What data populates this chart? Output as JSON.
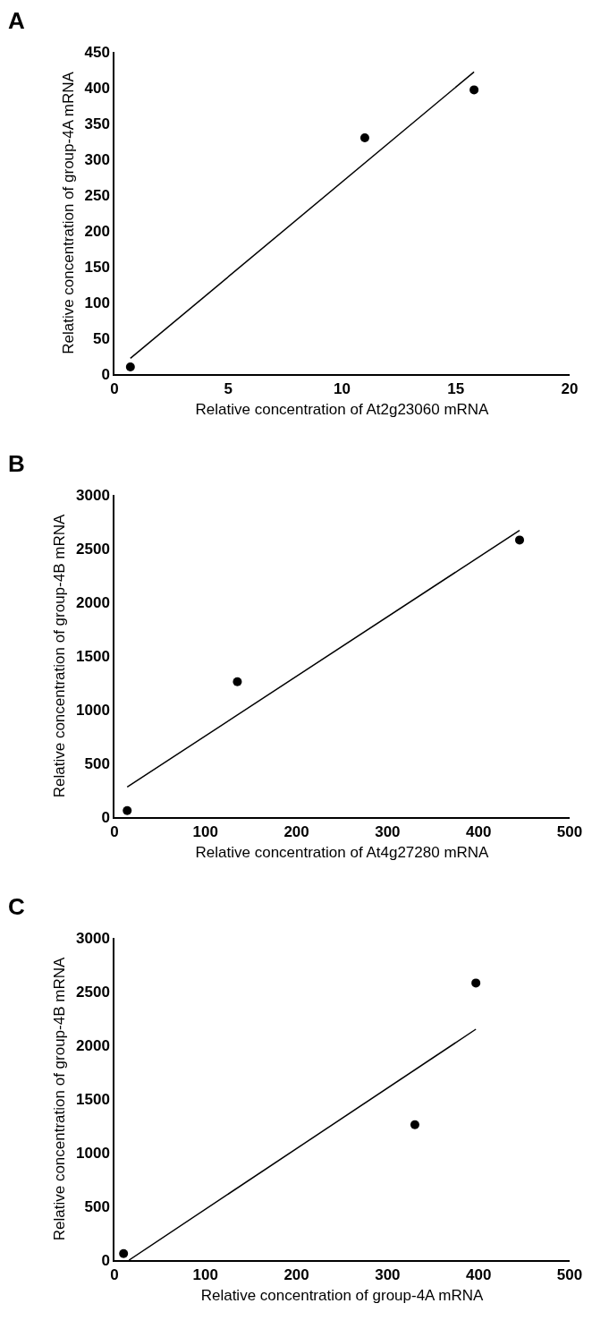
{
  "chart_data": [
    {
      "type": "scatter",
      "title": "A",
      "xlabel": "Relative concentration of At2g23060 mRNA",
      "ylabel": "Relative concentration of group-4A mRNA",
      "xlim": [
        0,
        20
      ],
      "xticks": [
        0,
        5,
        10,
        15,
        20
      ],
      "ylim": [
        0,
        450
      ],
      "yticks": [
        0,
        50,
        100,
        150,
        200,
        250,
        300,
        350,
        400,
        450
      ],
      "grid": false,
      "series": [
        {
          "color": "#000000",
          "marker": "circle",
          "x": [
            0.7,
            11.0,
            15.8
          ],
          "values": [
            10,
            330,
            397
          ]
        },
        {
          "type": "line",
          "color": "#000000",
          "x": [
            0.7,
            15.8
          ],
          "values": [
            22,
            422
          ]
        }
      ]
    },
    {
      "type": "scatter",
      "title": "B",
      "xlabel": "Relative concentration of At4g27280 mRNA",
      "ylabel": "Relative concentration of group-4B mRNA",
      "xlim": [
        0,
        500
      ],
      "xticks": [
        0,
        100,
        200,
        300,
        400,
        500
      ],
      "ylim": [
        0,
        3000
      ],
      "yticks": [
        0,
        500,
        1000,
        1500,
        2000,
        2500,
        3000
      ],
      "grid": false,
      "series": [
        {
          "color": "#000000",
          "marker": "circle",
          "x": [
            14,
            135,
            445
          ],
          "values": [
            60,
            1260,
            2580
          ]
        },
        {
          "type": "line",
          "color": "#000000",
          "x": [
            14,
            445
          ],
          "values": [
            280,
            2670
          ]
        }
      ]
    },
    {
      "type": "scatter",
      "title": "C",
      "xlabel": "Relative concentration of group-4A mRNA",
      "ylabel": "Relative concentration of group-4B mRNA",
      "xlim": [
        0,
        500
      ],
      "xticks": [
        0,
        100,
        200,
        300,
        400,
        500
      ],
      "ylim": [
        0,
        3000
      ],
      "yticks": [
        0,
        500,
        1000,
        1500,
        2000,
        2500,
        3000
      ],
      "grid": false,
      "series": [
        {
          "color": "#000000",
          "marker": "circle",
          "x": [
            10,
            330,
            397
          ],
          "values": [
            60,
            1260,
            2580
          ]
        },
        {
          "type": "line",
          "color": "#000000",
          "x": [
            16,
            397
          ],
          "values": [
            0,
            2150
          ]
        }
      ]
    }
  ]
}
